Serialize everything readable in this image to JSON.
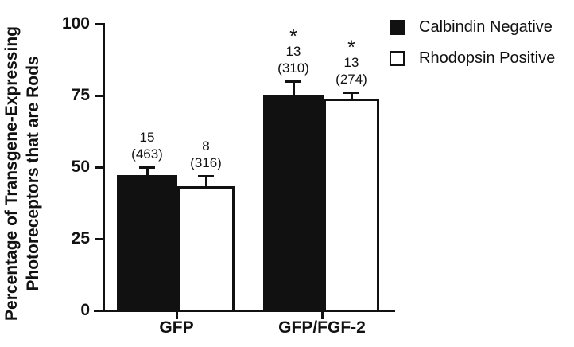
{
  "chart_data": {
    "type": "bar",
    "title": "",
    "xlabel": "",
    "ylabel_lines": [
      "Percentage of Transgene-Expressing",
      "Photoreceptors that are Rods"
    ],
    "ylim": [
      0,
      100
    ],
    "yticks": [
      0,
      25,
      50,
      75,
      100
    ],
    "categories": [
      "GFP",
      "GFP/FGF-2"
    ],
    "series": [
      {
        "name": "Calbindin Negative",
        "values": [
          47,
          75
        ],
        "errors": [
          3,
          5
        ],
        "annotations": [
          [
            "15",
            "(463)"
          ],
          [
            "*",
            "13",
            "(310)"
          ]
        ]
      },
      {
        "name": "Rhodopsin Positive",
        "values": [
          43,
          73.5
        ],
        "errors": [
          4,
          2.5
        ],
        "annotations": [
          [
            "8",
            "(316)"
          ],
          [
            "*",
            "13",
            "(274)"
          ]
        ]
      }
    ],
    "legend": [
      {
        "label": "Calbindin Negative",
        "swatch": "black"
      },
      {
        "label": "Rhodopsin Positive",
        "swatch": "white"
      }
    ],
    "colors": {
      "bar_black": "#111111",
      "bar_white": "#ffffff",
      "axis": "#111111"
    },
    "grid": "off",
    "legend_position": "top-right"
  }
}
